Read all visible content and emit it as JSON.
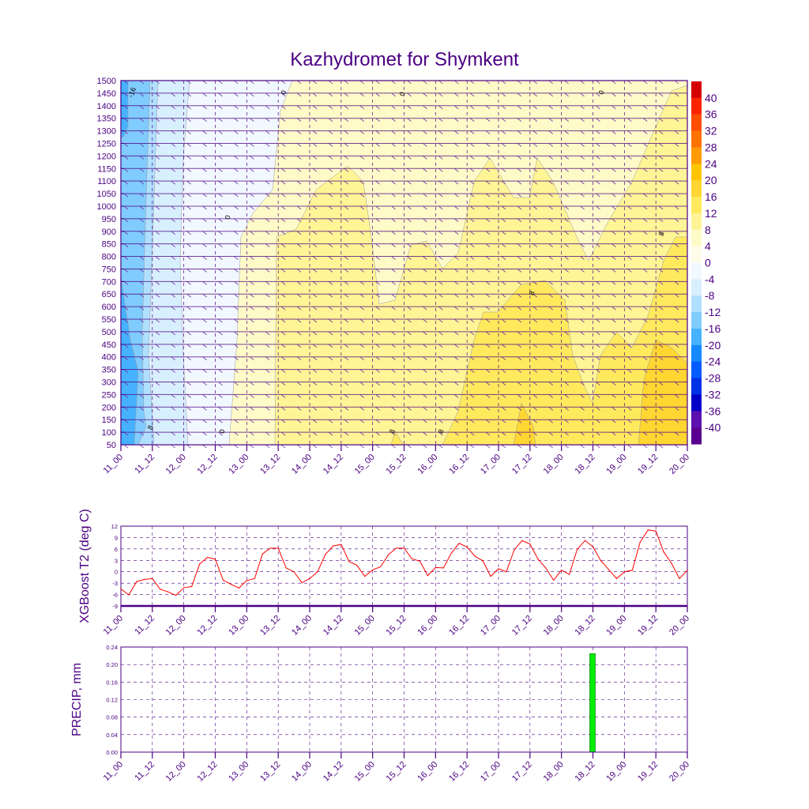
{
  "title": "Kazhydromet for Shymkent",
  "x_tick_labels": [
    "11_00",
    "11_12",
    "12_00",
    "12_12",
    "13_00",
    "13_12",
    "14_00",
    "14_12",
    "15_00",
    "15_12",
    "16_00",
    "16_12",
    "17_00",
    "17_12",
    "18_00",
    "18_12",
    "19_00",
    "19_12",
    "20_00"
  ],
  "chart_data": [
    {
      "type": "heatmap",
      "title": "Kazhydromet for Shymkent",
      "ylabel": "",
      "y_ticks": [
        50,
        100,
        150,
        200,
        250,
        300,
        350,
        400,
        450,
        500,
        550,
        600,
        650,
        700,
        750,
        800,
        850,
        900,
        950,
        1000,
        1050,
        1100,
        1150,
        1200,
        1250,
        1300,
        1350,
        1400,
        1450,
        1500
      ],
      "ylim": [
        50,
        1500
      ],
      "colorbar_levels": [
        40,
        36,
        32,
        28,
        24,
        20,
        16,
        12,
        8,
        4,
        0,
        -4,
        -8,
        -12,
        -16,
        -20,
        -24,
        -28,
        -32,
        -36,
        -40
      ],
      "colorbar_colors": [
        "#d40000",
        "#ff2400",
        "#ff4e00",
        "#ff7200",
        "#ff9a00",
        "#ffc400",
        "#ffd632",
        "#ffea5e",
        "#fff596",
        "#fffbc8",
        "#fffde8",
        "#f2f8ff",
        "#d8efff",
        "#b0e0ff",
        "#80ccff",
        "#46b2ff",
        "#1488ff",
        "#005cff",
        "#0030e8",
        "#0000c8",
        "#5c10b0",
        "#5a0090"
      ],
      "contour_labels": [
        "-16",
        "0",
        "0",
        "0",
        "0",
        "8",
        "8",
        "8",
        "8",
        "8",
        "0"
      ],
      "note_series": "temperature field with wind barbs"
    },
    {
      "type": "line",
      "ylabel": "XGBoost T2 (deg C)",
      "y_ticks": [
        12,
        9,
        6,
        3,
        0,
        -3,
        -6,
        -9
      ],
      "ylim": [
        -9,
        12
      ],
      "x_step_hours": 3,
      "color": "#ff0000",
      "values": [
        -4.5,
        -6.1,
        -2.6,
        -2.0,
        -1.8,
        -4.6,
        -5.3,
        -6.2,
        -4.2,
        -3.9,
        2.0,
        3.8,
        3.3,
        -2.2,
        -3.3,
        -4.3,
        -2.3,
        -1.8,
        4.7,
        6.2,
        6.2,
        1.0,
        0.0,
        -2.9,
        -1.8,
        0.0,
        4.6,
        6.8,
        7.2,
        2.7,
        1.7,
        -1.2,
        0.5,
        1.3,
        4.5,
        6.2,
        6.2,
        3.4,
        2.8,
        -1.0,
        1.1,
        1.0,
        4.9,
        7.5,
        6.5,
        4.1,
        2.9,
        -1.2,
        0.8,
        0.0,
        5.8,
        8.2,
        7.3,
        3.4,
        1.0,
        -2.2,
        0.4,
        -0.7,
        5.9,
        8.2,
        6.6,
        2.9,
        0.6,
        -1.8,
        0.0,
        0.4,
        7.8,
        11.0,
        10.7,
        5.2,
        2.2,
        -1.8,
        0.4
      ]
    },
    {
      "type": "bar",
      "ylabel": "PRECIP, mm",
      "y_ticks": [
        "0.24",
        "0.20",
        "0.16",
        "0.12",
        "0.08",
        "0.04",
        "0.00"
      ],
      "ylim": [
        0,
        0.24
      ],
      "color": "#00ee00",
      "bars": [
        {
          "x": "18_12",
          "value": 0.225
        }
      ]
    }
  ]
}
